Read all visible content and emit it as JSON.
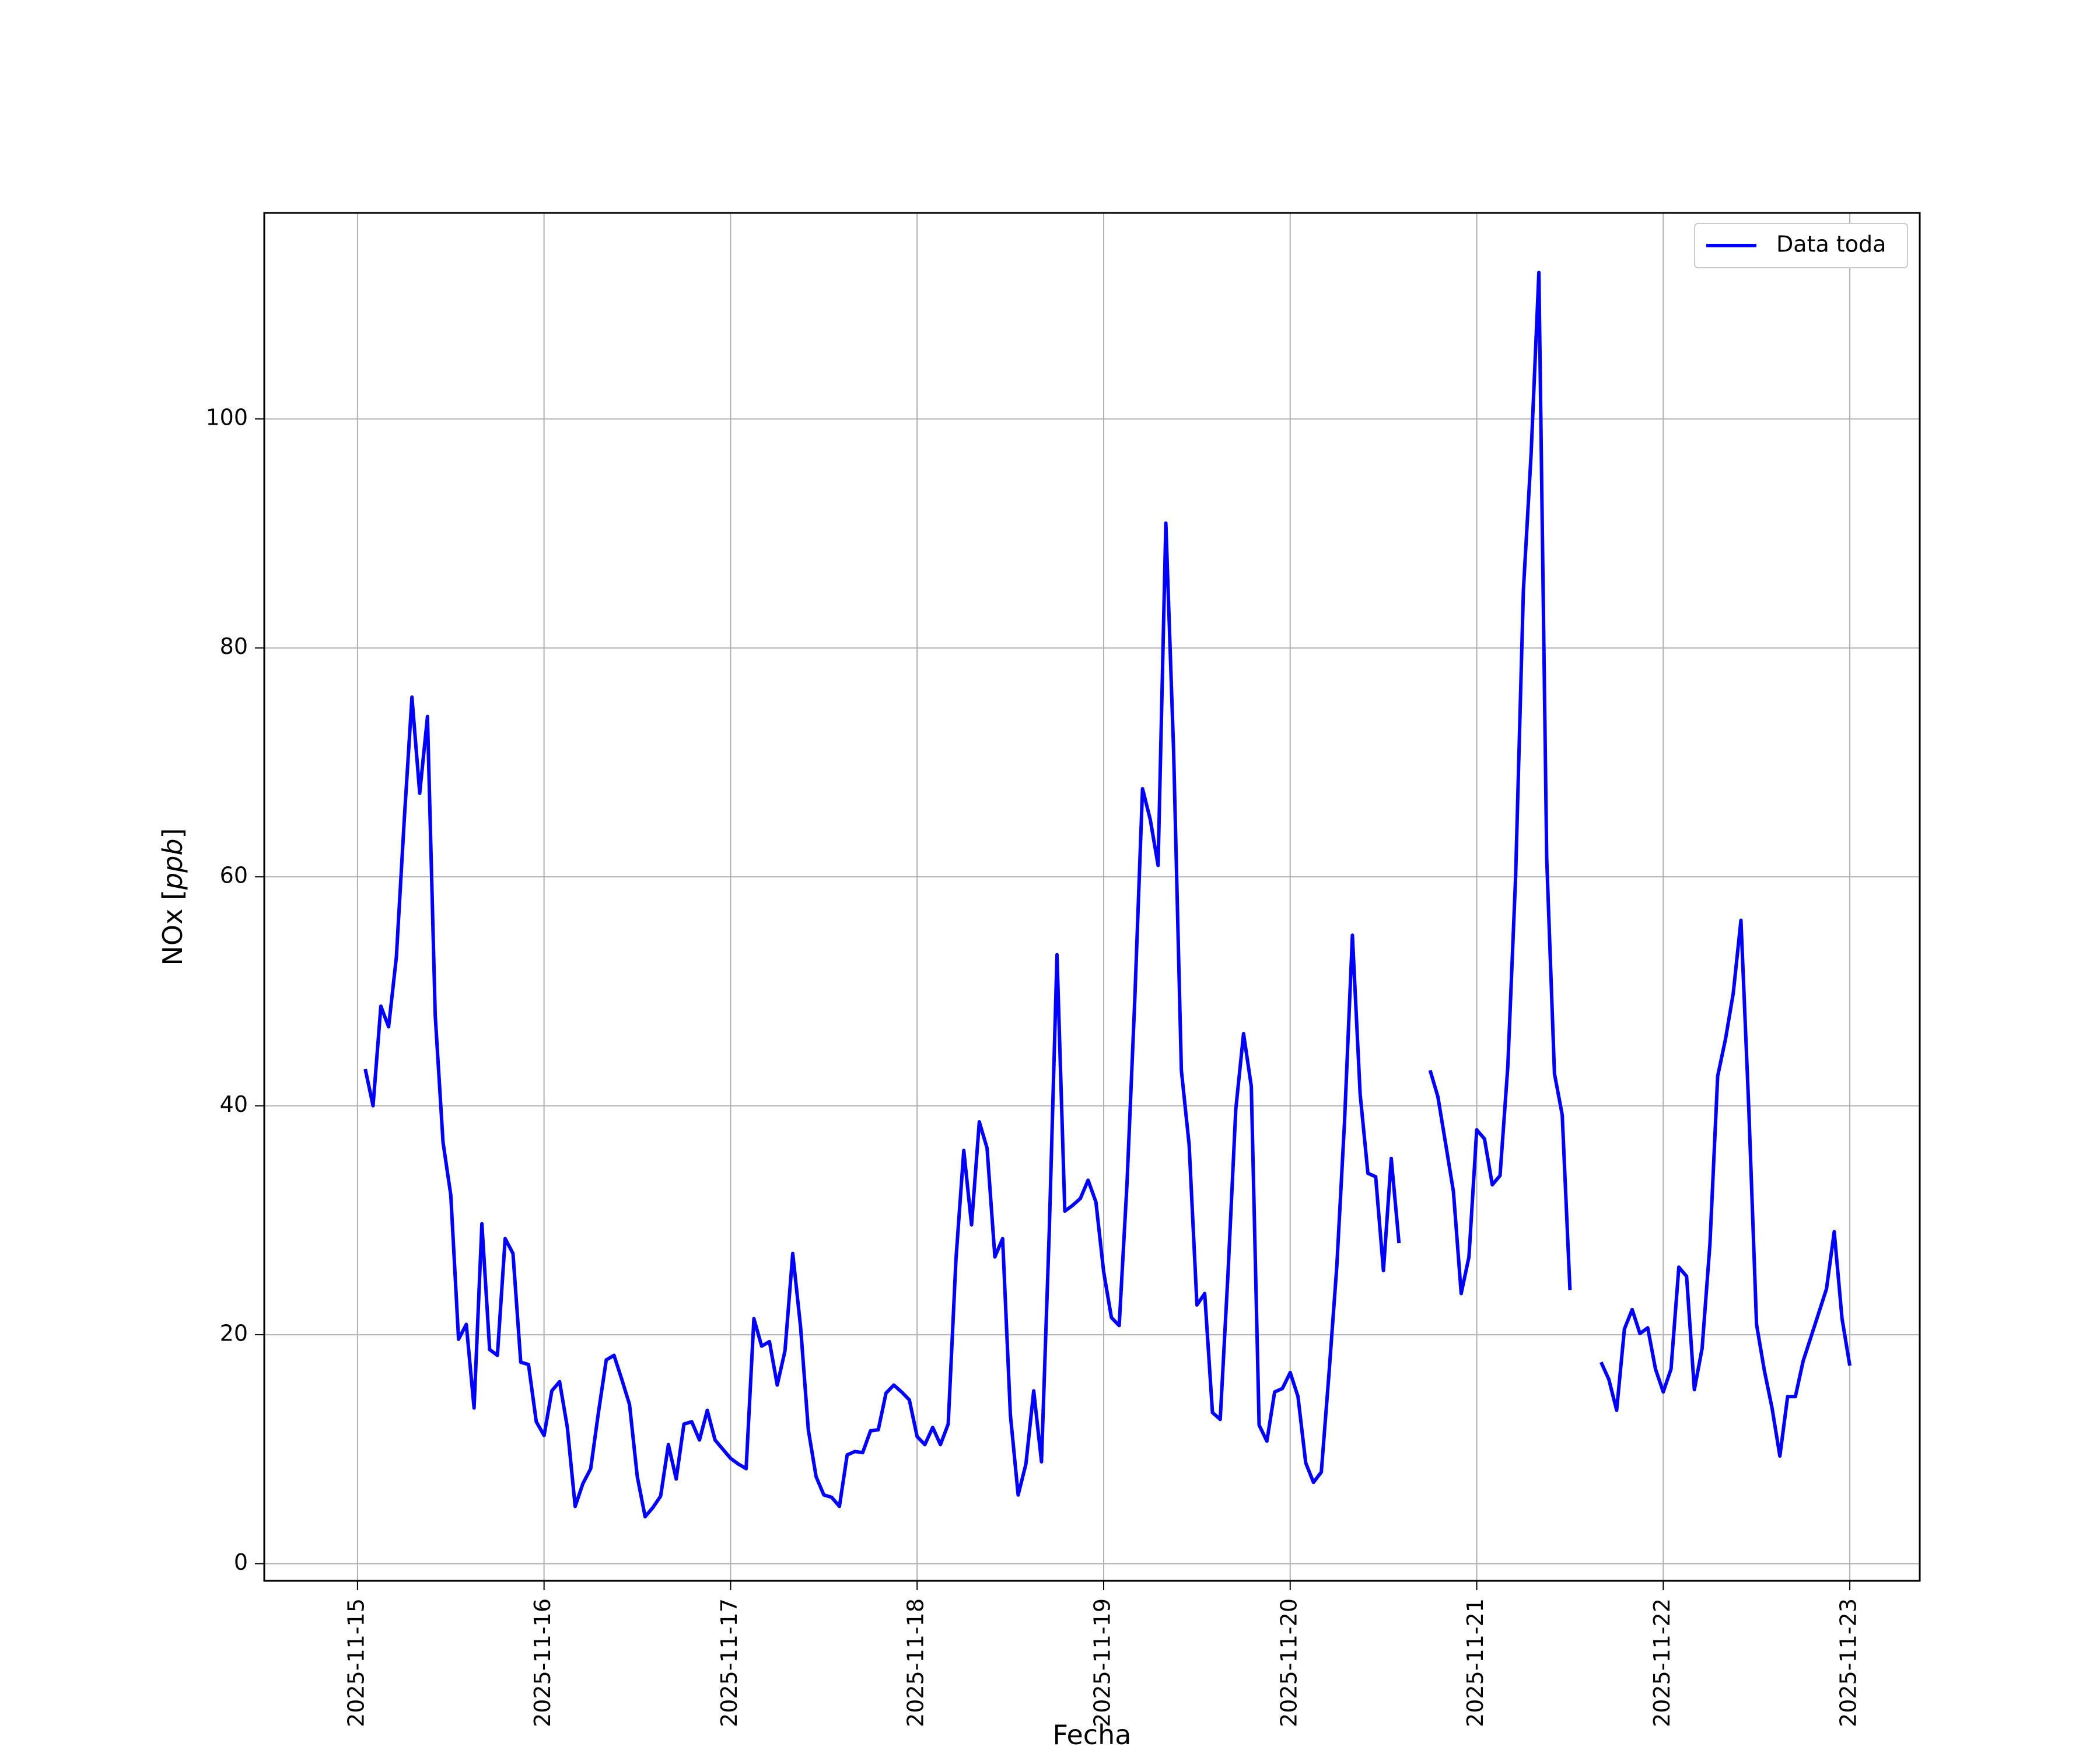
{
  "chart_data": {
    "type": "line",
    "xlabel": "Fecha",
    "ylabel": "NOx [ppb]",
    "ylabel_parts": {
      "prefix": "NOx [",
      "unit": "ppb",
      "suffix": "]"
    },
    "grid": true,
    "legend": {
      "placement": "upper-right",
      "entries": [
        "Data toda"
      ]
    },
    "x_ticks": [
      "2025-11-15",
      "2025-11-16",
      "2025-11-17",
      "2025-11-18",
      "2025-11-19",
      "2025-11-20",
      "2025-11-21",
      "2025-11-22",
      "2025-11-23"
    ],
    "y_ticks": [
      0,
      20,
      40,
      60,
      80,
      100
    ],
    "xlim": [
      "2025-11-14 12:00",
      "2025-11-23 09:00"
    ],
    "ylim": [
      -1.5,
      118
    ],
    "series": [
      {
        "name": "Data toda",
        "color": "#0000ff",
        "segments": [
          [
            [
              "2025-11-15 01:00",
              43.2
            ],
            [
              "2025-11-15 02:00",
              40.0
            ],
            [
              "2025-11-15 03:00",
              48.7
            ],
            [
              "2025-11-15 04:00",
              46.9
            ],
            [
              "2025-11-15 05:00",
              53.0
            ],
            [
              "2025-11-15 06:00",
              64.8
            ],
            [
              "2025-11-15 07:00",
              75.7
            ],
            [
              "2025-11-15 08:00",
              67.3
            ],
            [
              "2025-11-15 09:00",
              74.0
            ],
            [
              "2025-11-15 10:00",
              47.9
            ],
            [
              "2025-11-15 11:00",
              36.8
            ],
            [
              "2025-11-15 12:00",
              32.2
            ],
            [
              "2025-11-15 13:00",
              19.6
            ],
            [
              "2025-11-15 14:00",
              20.9
            ],
            [
              "2025-11-15 15:00",
              13.6
            ],
            [
              "2025-11-15 16:00",
              29.7
            ],
            [
              "2025-11-15 17:00",
              18.7
            ],
            [
              "2025-11-15 18:00",
              18.2
            ],
            [
              "2025-11-15 19:00",
              28.4
            ],
            [
              "2025-11-15 20:00",
              27.1
            ],
            [
              "2025-11-15 21:00",
              17.6
            ],
            [
              "2025-11-15 22:00",
              17.4
            ],
            [
              "2025-11-15 23:00",
              12.4
            ],
            [
              "2025-11-16 00:00",
              11.2
            ],
            [
              "2025-11-16 01:00",
              15.1
            ],
            [
              "2025-11-16 02:00",
              15.9
            ],
            [
              "2025-11-16 03:00",
              11.9
            ],
            [
              "2025-11-16 04:00",
              5.0
            ],
            [
              "2025-11-16 05:00",
              7.0
            ],
            [
              "2025-11-16 06:00",
              8.3
            ],
            [
              "2025-11-16 07:00",
              13.2
            ],
            [
              "2025-11-16 08:00",
              17.8
            ],
            [
              "2025-11-16 09:00",
              18.2
            ],
            [
              "2025-11-16 10:00",
              16.1
            ],
            [
              "2025-11-16 11:00",
              13.9
            ],
            [
              "2025-11-16 12:00",
              7.6
            ],
            [
              "2025-11-16 13:00",
              4.1
            ],
            [
              "2025-11-16 14:00",
              4.9
            ],
            [
              "2025-11-16 15:00",
              5.9
            ],
            [
              "2025-11-16 16:00",
              10.4
            ],
            [
              "2025-11-16 17:00",
              7.4
            ],
            [
              "2025-11-16 18:00",
              12.2
            ],
            [
              "2025-11-16 19:00",
              12.4
            ],
            [
              "2025-11-16 20:00",
              10.8
            ],
            [
              "2025-11-16 21:00",
              13.4
            ],
            [
              "2025-11-16 22:00",
              10.8
            ],
            [
              "2025-11-16 23:00",
              10.0
            ],
            [
              "2025-11-17 00:00",
              9.2
            ],
            [
              "2025-11-17 01:00",
              8.7
            ],
            [
              "2025-11-17 02:00",
              8.3
            ],
            [
              "2025-11-17 03:00",
              21.4
            ],
            [
              "2025-11-17 04:00",
              19.0
            ],
            [
              "2025-11-17 05:00",
              19.4
            ],
            [
              "2025-11-17 06:00",
              15.6
            ],
            [
              "2025-11-17 07:00",
              18.6
            ],
            [
              "2025-11-17 08:00",
              27.1
            ],
            [
              "2025-11-17 09:00",
              20.7
            ],
            [
              "2025-11-17 10:00",
              11.7
            ],
            [
              "2025-11-17 11:00",
              7.6
            ],
            [
              "2025-11-17 12:00",
              6.0
            ],
            [
              "2025-11-17 13:00",
              5.8
            ],
            [
              "2025-11-17 14:00",
              5.0
            ],
            [
              "2025-11-17 15:00",
              9.5
            ],
            [
              "2025-11-17 16:00",
              9.8
            ],
            [
              "2025-11-17 17:00",
              9.7
            ],
            [
              "2025-11-17 18:00",
              11.6
            ],
            [
              "2025-11-17 19:00",
              11.7
            ],
            [
              "2025-11-17 20:00",
              14.9
            ],
            [
              "2025-11-17 21:00",
              15.6
            ],
            [
              "2025-11-17 22:00",
              15.0
            ],
            [
              "2025-11-17 23:00",
              14.3
            ],
            [
              "2025-11-18 00:00",
              11.1
            ],
            [
              "2025-11-18 01:00",
              10.4
            ],
            [
              "2025-11-18 02:00",
              11.9
            ],
            [
              "2025-11-18 03:00",
              10.4
            ],
            [
              "2025-11-18 04:00",
              12.2
            ],
            [
              "2025-11-18 05:00",
              26.6
            ],
            [
              "2025-11-18 06:00",
              36.1
            ],
            [
              "2025-11-18 07:00",
              29.6
            ],
            [
              "2025-11-18 08:00",
              38.6
            ],
            [
              "2025-11-18 09:00",
              36.3
            ],
            [
              "2025-11-18 10:00",
              26.8
            ],
            [
              "2025-11-18 11:00",
              28.4
            ],
            [
              "2025-11-18 12:00",
              13.0
            ],
            [
              "2025-11-18 13:00",
              6.0
            ],
            [
              "2025-11-18 14:00",
              8.7
            ],
            [
              "2025-11-18 15:00",
              15.1
            ],
            [
              "2025-11-18 16:00",
              8.9
            ],
            [
              "2025-11-18 17:00",
              29.0
            ],
            [
              "2025-11-18 18:00",
              53.2
            ],
            [
              "2025-11-18 19:00",
              30.8
            ],
            [
              "2025-11-18 20:00",
              31.3
            ],
            [
              "2025-11-18 21:00",
              31.9
            ],
            [
              "2025-11-18 22:00",
              33.5
            ],
            [
              "2025-11-18 23:00",
              31.6
            ],
            [
              "2025-11-19 00:00",
              25.5
            ],
            [
              "2025-11-19 01:00",
              21.5
            ],
            [
              "2025-11-19 02:00",
              20.8
            ],
            [
              "2025-11-19 03:00",
              33.2
            ],
            [
              "2025-11-19 04:00",
              49.2
            ],
            [
              "2025-11-19 05:00",
              67.7
            ],
            [
              "2025-11-19 06:00",
              65.0
            ],
            [
              "2025-11-19 07:00",
              61.0
            ],
            [
              "2025-11-19 08:00",
              90.9
            ],
            [
              "2025-11-19 09:00",
              71.0
            ],
            [
              "2025-11-19 10:00",
              43.1
            ],
            [
              "2025-11-19 11:00",
              36.6
            ],
            [
              "2025-11-19 12:00",
              22.6
            ],
            [
              "2025-11-19 13:00",
              23.6
            ],
            [
              "2025-11-19 14:00",
              13.2
            ],
            [
              "2025-11-19 15:00",
              12.6
            ],
            [
              "2025-11-19 16:00",
              25.4
            ],
            [
              "2025-11-19 17:00",
              39.7
            ],
            [
              "2025-11-19 18:00",
              46.3
            ],
            [
              "2025-11-19 19:00",
              41.7
            ],
            [
              "2025-11-19 20:00",
              12.1
            ],
            [
              "2025-11-19 21:00",
              10.7
            ],
            [
              "2025-11-19 22:00",
              15.0
            ],
            [
              "2025-11-19 23:00",
              15.3
            ],
            [
              "2025-11-20 00:00",
              16.7
            ],
            [
              "2025-11-20 01:00",
              14.6
            ],
            [
              "2025-11-20 02:00",
              8.8
            ],
            [
              "2025-11-20 03:00",
              7.1
            ],
            [
              "2025-11-20 04:00",
              8.0
            ],
            [
              "2025-11-20 05:00",
              16.7
            ],
            [
              "2025-11-20 06:00",
              26.0
            ],
            [
              "2025-11-20 07:00",
              38.7
            ],
            [
              "2025-11-20 08:00",
              54.9
            ],
            [
              "2025-11-20 09:00",
              41.0
            ],
            [
              "2025-11-20 10:00",
              34.1
            ],
            [
              "2025-11-20 11:00",
              33.8
            ],
            [
              "2025-11-20 12:00",
              25.6
            ],
            [
              "2025-11-20 13:00",
              35.4
            ],
            [
              "2025-11-20 14:00",
              28.0
            ]
          ],
          [
            [
              "2025-11-20 18:00",
              43.1
            ],
            [
              "2025-11-20 19:00",
              40.8
            ],
            [
              "2025-11-20 20:00",
              36.7
            ],
            [
              "2025-11-20 21:00",
              32.5
            ],
            [
              "2025-11-20 22:00",
              23.6
            ],
            [
              "2025-11-20 23:00",
              26.8
            ],
            [
              "2025-11-21 00:00",
              37.9
            ],
            [
              "2025-11-21 01:00",
              37.1
            ],
            [
              "2025-11-21 02:00",
              33.1
            ],
            [
              "2025-11-21 03:00",
              33.9
            ],
            [
              "2025-11-21 04:00",
              43.4
            ],
            [
              "2025-11-21 05:00",
              60.0
            ],
            [
              "2025-11-21 06:00",
              85.0
            ],
            [
              "2025-11-21 07:00",
              97.0
            ],
            [
              "2025-11-21 08:00",
              112.8
            ],
            [
              "2025-11-21 09:00",
              61.6
            ],
            [
              "2025-11-21 10:00",
              42.8
            ],
            [
              "2025-11-21 11:00",
              39.2
            ],
            [
              "2025-11-21 12:00",
              23.9
            ]
          ],
          [
            [
              "2025-11-21 16:00",
              17.6
            ],
            [
              "2025-11-21 17:00",
              16.1
            ],
            [
              "2025-11-21 18:00",
              13.4
            ],
            [
              "2025-11-21 19:00",
              20.5
            ],
            [
              "2025-11-21 20:00",
              22.2
            ],
            [
              "2025-11-21 21:00",
              20.1
            ],
            [
              "2025-11-21 22:00",
              20.6
            ],
            [
              "2025-11-21 23:00",
              17.0
            ],
            [
              "2025-11-22 00:00",
              15.0
            ],
            [
              "2025-11-22 01:00",
              17.0
            ],
            [
              "2025-11-22 02:00",
              25.9
            ],
            [
              "2025-11-22 03:00",
              25.1
            ],
            [
              "2025-11-22 04:00",
              15.2
            ],
            [
              "2025-11-22 05:00",
              18.8
            ],
            [
              "2025-11-22 06:00",
              27.9
            ],
            [
              "2025-11-22 07:00",
              42.6
            ],
            [
              "2025-11-22 08:00",
              45.8
            ],
            [
              "2025-11-22 09:00",
              49.8
            ],
            [
              "2025-11-22 10:00",
              56.2
            ],
            [
              "2025-11-22 11:00",
              39.8
            ],
            [
              "2025-11-22 12:00",
              20.9
            ],
            [
              "2025-11-22 13:00",
              16.9
            ],
            [
              "2025-11-22 14:00",
              13.6
            ],
            [
              "2025-11-22 15:00",
              9.4
            ],
            [
              "2025-11-22 16:00",
              14.6
            ],
            [
              "2025-11-22 17:00",
              14.6
            ],
            [
              "2025-11-22 18:00",
              17.7
            ],
            [
              "2025-11-22 19:00",
              19.8
            ],
            [
              "2025-11-22 20:00",
              21.9
            ],
            [
              "2025-11-22 21:00",
              24.0
            ],
            [
              "2025-11-22 22:00",
              29.0
            ],
            [
              "2025-11-22 23:00",
              21.4
            ],
            [
              "2025-11-23 00:00",
              17.3
            ]
          ]
        ]
      }
    ]
  }
}
